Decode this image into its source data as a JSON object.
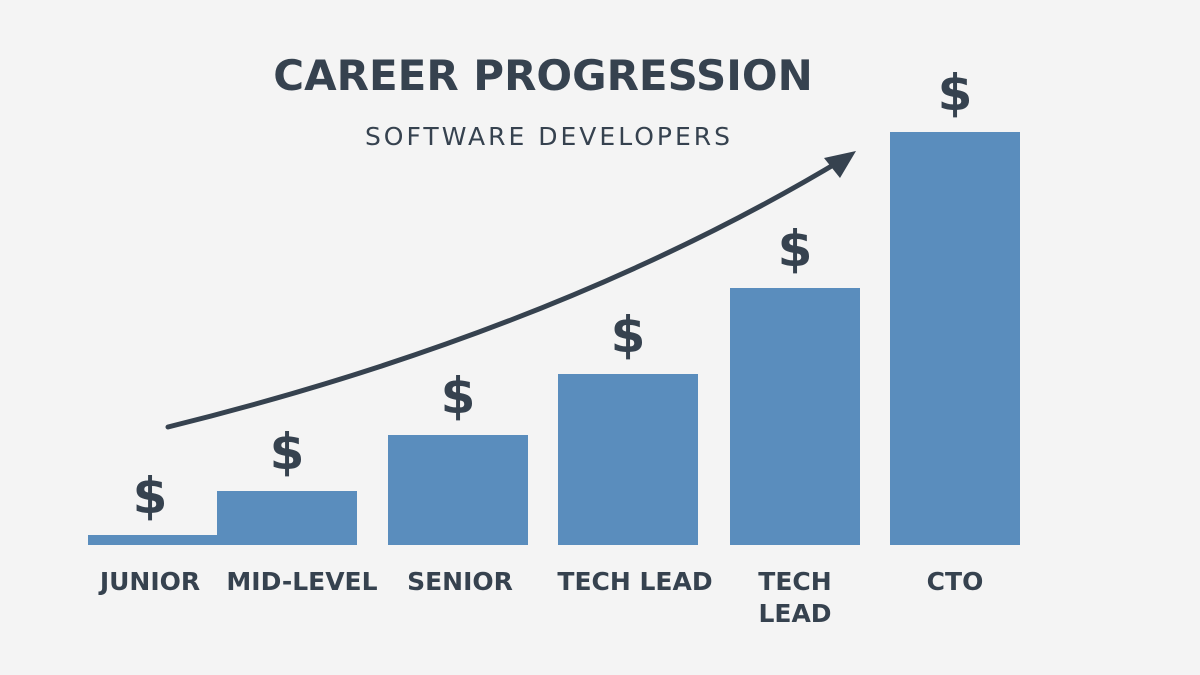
{
  "chart_data": {
    "type": "bar",
    "title": "CAREER PROGRESSION",
    "subtitle": "SOFTWARE DEVELOPERS",
    "categories": [
      "JUNIOR",
      "MID-LEVEL",
      "SENIOR",
      "TECH LEAD",
      "TECH LEAD",
      "CTO"
    ],
    "values": [
      10,
      54,
      110,
      171,
      257,
      413
    ],
    "bar_labels": [
      "$",
      "$",
      "$",
      "$",
      "$",
      "$"
    ],
    "color": "#5a8dbd",
    "ylim": [
      0,
      420
    ]
  }
}
